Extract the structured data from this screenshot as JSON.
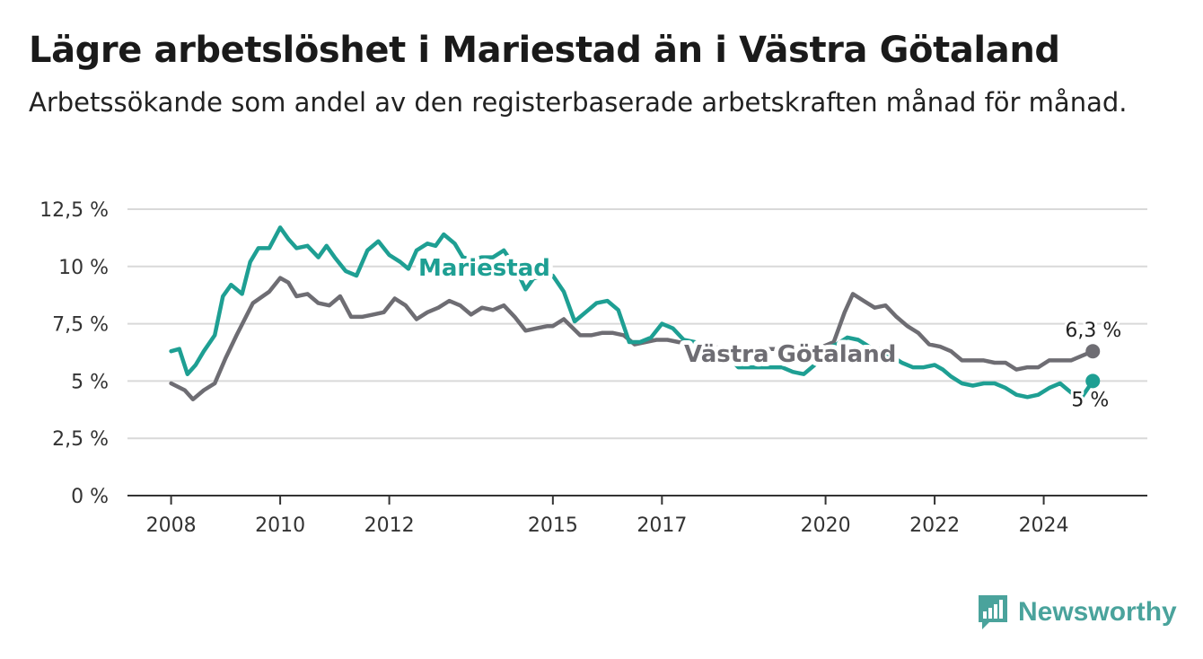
{
  "title": "Lägre arbetslöshet i Mariestad än i Västra Götaland",
  "subtitle": "Arbetssökande som andel av den registerbaserade arbetskraften månad för månad.",
  "brand": {
    "name": "Newsworthy",
    "icon": "newsworthy-logo-icon",
    "color": "#4aa39c"
  },
  "chart_data": {
    "type": "line",
    "title": "Lägre arbetslöshet i Mariestad än i Västra Götaland",
    "subtitle": "Arbetssökande som andel av den registerbaserade arbetskraften månad för månad.",
    "xlabel": "",
    "ylabel": "",
    "x_ticks": [
      {
        "value": 2008,
        "label": "2008"
      },
      {
        "value": 2010,
        "label": "2010"
      },
      {
        "value": 2012,
        "label": "2012"
      },
      {
        "value": 2015,
        "label": "2015"
      },
      {
        "value": 2017,
        "label": "2017"
      },
      {
        "value": 2020,
        "label": "2020"
      },
      {
        "value": 2022,
        "label": "2022"
      },
      {
        "value": 2024,
        "label": "2024"
      }
    ],
    "xlim": [
      2007.2,
      2025.9
    ],
    "y_ticks": [
      {
        "value": 0,
        "label": "0 %"
      },
      {
        "value": 2.5,
        "label": "2,5 %"
      },
      {
        "value": 5,
        "label": "5 %"
      },
      {
        "value": 7.5,
        "label": "7,5 %"
      },
      {
        "value": 10,
        "label": "10 %"
      },
      {
        "value": 12.5,
        "label": "12,5 %"
      }
    ],
    "ylim": [
      0,
      12.5
    ],
    "grid": true,
    "series": [
      {
        "name": "Västra Götaland",
        "color": "#6e6d73",
        "end_label": "6,3 %",
        "x": [
          2008.0,
          2008.25,
          2008.4,
          2008.6,
          2008.8,
          2009.0,
          2009.2,
          2009.5,
          2009.8,
          2010.0,
          2010.15,
          2010.3,
          2010.5,
          2010.7,
          2010.9,
          2011.1,
          2011.3,
          2011.5,
          2011.7,
          2011.9,
          2012.1,
          2012.3,
          2012.5,
          2012.7,
          2012.9,
          2013.1,
          2013.3,
          2013.5,
          2013.7,
          2013.9,
          2014.1,
          2014.3,
          2014.5,
          2014.7,
          2014.9,
          2015.0,
          2015.2,
          2015.5,
          2015.7,
          2015.9,
          2016.1,
          2016.3,
          2016.5,
          2016.7,
          2016.9,
          2017.1,
          2017.3,
          2017.6,
          2017.9,
          2018.2,
          2018.5,
          2018.8,
          2019.1,
          2019.4,
          2019.7,
          2019.95,
          2020.15,
          2020.35,
          2020.5,
          2020.7,
          2020.9,
          2021.1,
          2021.3,
          2021.5,
          2021.7,
          2021.9,
          2022.1,
          2022.3,
          2022.5,
          2022.7,
          2022.9,
          2023.1,
          2023.3,
          2023.5,
          2023.7,
          2023.9,
          2024.1,
          2024.3,
          2024.5,
          2024.7,
          2024.9
        ],
        "y": [
          4.9,
          4.6,
          4.2,
          4.6,
          4.9,
          6.0,
          7.0,
          8.4,
          8.9,
          9.5,
          9.3,
          8.7,
          8.8,
          8.4,
          8.3,
          8.7,
          7.8,
          7.8,
          7.9,
          8.0,
          8.6,
          8.3,
          7.7,
          8.0,
          8.2,
          8.5,
          8.3,
          7.9,
          8.2,
          8.1,
          8.3,
          7.8,
          7.2,
          7.3,
          7.4,
          7.4,
          7.7,
          7.0,
          7.0,
          7.1,
          7.1,
          7.0,
          6.6,
          6.7,
          6.8,
          6.8,
          6.7,
          6.6,
          6.5,
          6.4,
          6.4,
          6.4,
          6.4,
          6.4,
          6.4,
          6.5,
          6.7,
          8.0,
          8.8,
          8.5,
          8.2,
          8.3,
          7.8,
          7.4,
          7.1,
          6.6,
          6.5,
          6.3,
          5.9,
          5.9,
          5.9,
          5.8,
          5.8,
          5.5,
          5.6,
          5.6,
          5.9,
          5.9,
          5.9,
          6.1,
          6.3
        ]
      },
      {
        "name": "Mariestad",
        "color": "#1e9f93",
        "end_label": "5 %",
        "x": [
          2008.0,
          2008.15,
          2008.3,
          2008.45,
          2008.6,
          2008.8,
          2008.95,
          2009.1,
          2009.3,
          2009.45,
          2009.6,
          2009.8,
          2010.0,
          2010.15,
          2010.3,
          2010.5,
          2010.7,
          2010.85,
          2011.0,
          2011.2,
          2011.4,
          2011.6,
          2011.8,
          2012.0,
          2012.2,
          2012.35,
          2012.5,
          2012.7,
          2012.85,
          2013.0,
          2013.2,
          2013.35,
          2013.5,
          2013.7,
          2013.9,
          2014.1,
          2014.3,
          2014.5,
          2014.65,
          2014.8,
          2015.0,
          2015.2,
          2015.4,
          2015.6,
          2015.8,
          2016.0,
          2016.2,
          2016.4,
          2016.6,
          2016.8,
          2017.0,
          2017.2,
          2017.4,
          2017.6,
          2017.8,
          2018.0,
          2018.2,
          2018.4,
          2018.6,
          2018.8,
          2019.0,
          2019.2,
          2019.4,
          2019.6,
          2019.8,
          2020.0,
          2020.2,
          2020.4,
          2020.6,
          2020.8,
          2021.0,
          2021.2,
          2021.4,
          2021.6,
          2021.8,
          2022.0,
          2022.15,
          2022.3,
          2022.5,
          2022.7,
          2022.9,
          2023.1,
          2023.3,
          2023.5,
          2023.7,
          2023.9,
          2024.1,
          2024.3,
          2024.5,
          2024.7,
          2024.9
        ],
        "y": [
          6.3,
          6.4,
          5.3,
          5.7,
          6.3,
          7.0,
          8.7,
          9.2,
          8.8,
          10.2,
          10.8,
          10.8,
          11.7,
          11.2,
          10.8,
          10.9,
          10.4,
          10.9,
          10.4,
          9.8,
          9.6,
          10.7,
          11.1,
          10.5,
          10.2,
          9.9,
          10.7,
          11.0,
          10.9,
          11.4,
          11.0,
          10.4,
          10.3,
          10.4,
          10.4,
          10.7,
          10.0,
          9.0,
          9.5,
          9.5,
          9.6,
          8.9,
          7.6,
          8.0,
          8.4,
          8.5,
          8.1,
          6.7,
          6.7,
          6.9,
          7.5,
          7.3,
          6.8,
          6.7,
          6.5,
          6.4,
          6.1,
          5.6,
          5.6,
          5.6,
          5.6,
          5.6,
          5.4,
          5.3,
          5.7,
          6.4,
          6.6,
          6.9,
          6.8,
          6.5,
          6.4,
          6.1,
          5.8,
          5.6,
          5.6,
          5.7,
          5.5,
          5.2,
          4.9,
          4.8,
          4.9,
          4.9,
          4.7,
          4.4,
          4.3,
          4.4,
          4.7,
          4.9,
          4.5,
          4.3,
          5.0
        ]
      }
    ],
    "annotations": [
      {
        "text": "Mariestad",
        "series": "Mariestad"
      },
      {
        "text": "Västra Götaland",
        "series": "Västra Götaland"
      }
    ]
  }
}
